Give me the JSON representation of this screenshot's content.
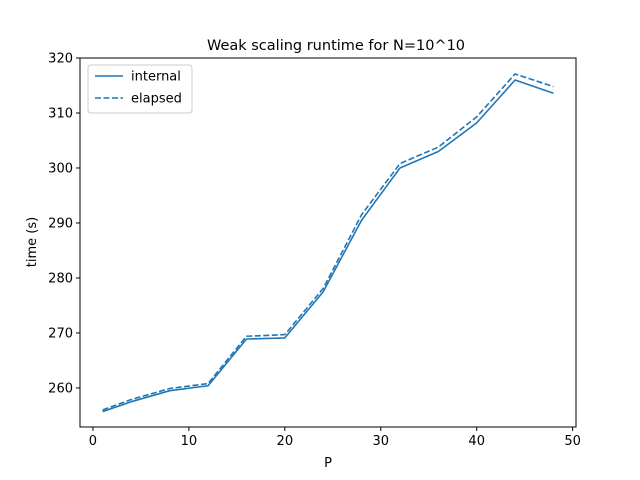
{
  "chart_data": {
    "type": "line",
    "title": "Weak scaling runtime for N=10^10",
    "xlabel": "P",
    "ylabel": "time (s)",
    "xlim": [
      -1.35,
      50.35
    ],
    "ylim": [
      252.9,
      320.0
    ],
    "xticks": [
      0,
      10,
      20,
      30,
      40,
      50
    ],
    "yticks": [
      260,
      270,
      280,
      290,
      300,
      310,
      320
    ],
    "grid": false,
    "legend_position": "top-left",
    "x": [
      1,
      4,
      8,
      12,
      16,
      20,
      24,
      28,
      32,
      36,
      40,
      44,
      48
    ],
    "series": [
      {
        "name": "internal",
        "style": "solid",
        "color": "#1f77b4",
        "values": [
          255.7,
          257.5,
          259.5,
          260.4,
          268.9,
          269.1,
          277.5,
          290.5,
          300.0,
          303.0,
          308.2,
          316.0,
          313.6
        ]
      },
      {
        "name": "elapsed",
        "style": "dashed",
        "color": "#1f77b4",
        "values": [
          256.0,
          257.9,
          259.9,
          260.8,
          269.4,
          269.7,
          278.1,
          291.5,
          300.8,
          303.8,
          309.3,
          317.1,
          314.8
        ]
      }
    ]
  }
}
